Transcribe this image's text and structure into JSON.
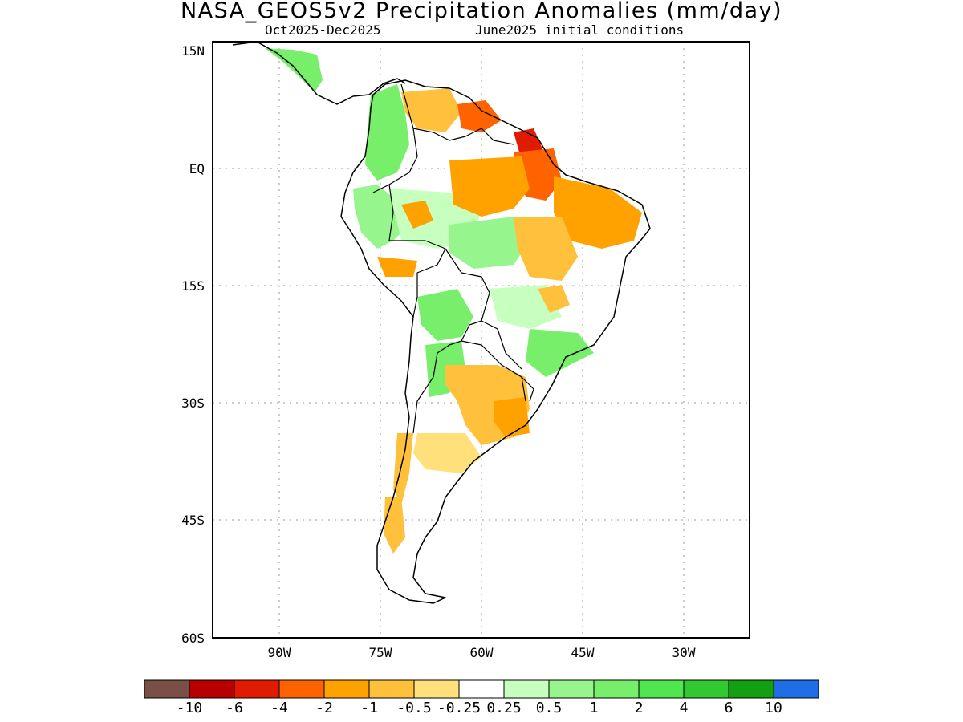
{
  "title": "NASA_GEOS5v2 Precipitation Anomalies (mm/day)",
  "subtitle_period": "Oct2025-Dec2025",
  "subtitle_init": "June2025 initial conditions",
  "lat_labels": [
    "15N",
    "EQ",
    "15S",
    "30S",
    "45S",
    "60S"
  ],
  "lon_labels": [
    "90W",
    "75W",
    "60W",
    "45W",
    "30W"
  ],
  "colorbar": {
    "labels": [
      "-10",
      "-6",
      "-4",
      "-2",
      "-1",
      "-0.5",
      "-0.25",
      "0.25",
      "0.5",
      "1",
      "2",
      "4",
      "6",
      "10"
    ],
    "colors": [
      "#7a4f45",
      "#b80000",
      "#e01b00",
      "#ff6300",
      "#ffa200",
      "#ffc03c",
      "#ffe07a",
      "#ffffff",
      "#c6ffbe",
      "#96f58c",
      "#78ef6a",
      "#50e650",
      "#32c832",
      "#12a012",
      "#1e6ee6"
    ]
  },
  "map": {
    "land_color": "#ffffff",
    "coast_color": "#000000",
    "grid": true
  }
}
